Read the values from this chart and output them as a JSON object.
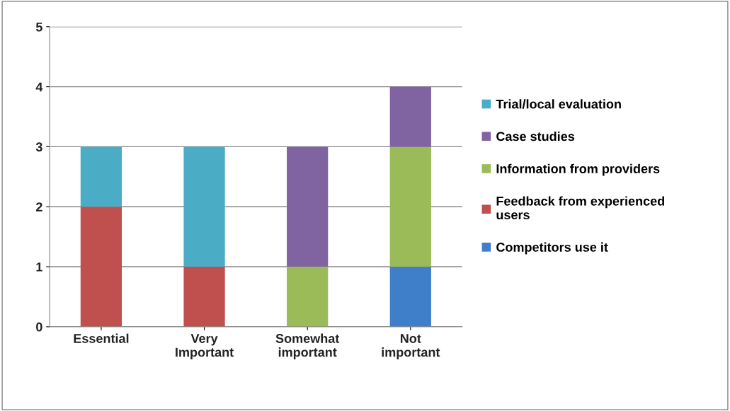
{
  "chart_data": {
    "type": "bar",
    "stacked": true,
    "categories": [
      "Essential",
      "Very\nImportant",
      "Somewhat\nimportant",
      "Not\nimportant"
    ],
    "series": [
      {
        "name": "Competitors use it",
        "color": "#3f7fc9",
        "values": [
          null,
          null,
          null,
          1
        ]
      },
      {
        "name": "Feedback from experienced\nusers",
        "color": "#c0504d",
        "values": [
          2,
          1,
          null,
          null
        ]
      },
      {
        "name": "Information from providers",
        "color": "#9bbb59",
        "values": [
          null,
          null,
          1,
          2
        ]
      },
      {
        "name": "Case studies",
        "color": "#8064a2",
        "values": [
          null,
          null,
          2,
          1
        ]
      },
      {
        "name": "Trial/local evaluation",
        "color": "#4bacc6",
        "values": [
          1,
          2,
          null,
          null
        ]
      }
    ],
    "ylim": [
      0,
      5
    ],
    "yticks": [
      0,
      1,
      2,
      3,
      4,
      5
    ],
    "grid": "y",
    "legend": "right"
  }
}
